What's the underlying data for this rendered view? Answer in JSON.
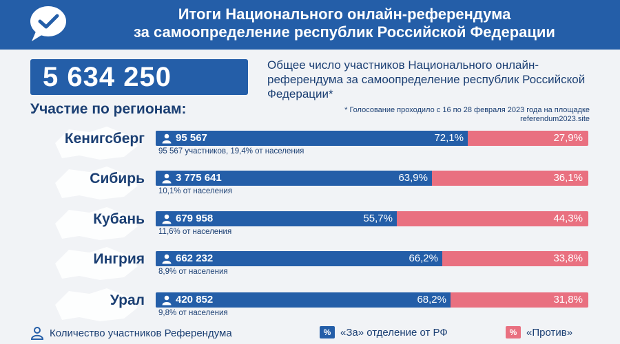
{
  "header": {
    "title_line1": "Итоги Национального онлайн-референдума",
    "title_line2": "за самоопределение республик Российской Федерации"
  },
  "total": {
    "value": "5 634 250",
    "description": "Общее число участников Национального онлайн-референдума за самоопределение республик Российской Федерации*"
  },
  "section_title": "Участие по регионам:",
  "footnote": "* Голосование проходило с 16 по 28 февраля 2023 года на площадке referendum2023.site",
  "regions": [
    {
      "name": "Кенигсберг",
      "count": "95 567",
      "for_pct": "72,1%",
      "against_pct": "27,9%",
      "for_fraction": 0.721,
      "sub": "95 567 участников, 19,4% от населения"
    },
    {
      "name": "Сибирь",
      "count": "3 775 641",
      "for_pct": "63,9%",
      "against_pct": "36,1%",
      "for_fraction": 0.639,
      "sub": "10,1% от населения"
    },
    {
      "name": "Кубань",
      "count": "679 958",
      "for_pct": "55,7%",
      "against_pct": "44,3%",
      "for_fraction": 0.557,
      "sub": "11,6% от населения"
    },
    {
      "name": "Ингрия",
      "count": "662 232",
      "for_pct": "66,2%",
      "against_pct": "33,8%",
      "for_fraction": 0.662,
      "sub": "8,9% от населения"
    },
    {
      "name": "Урал",
      "count": "420 852",
      "for_pct": "68,2%",
      "against_pct": "31,8%",
      "for_fraction": 0.682,
      "sub": "9,8% от населения"
    }
  ],
  "legend": {
    "participants": "Количество участников Референдума",
    "swatch_symbol": "%",
    "for_label": "«За» отделение от РФ",
    "against_label": "«Против»"
  },
  "colors": {
    "brand_blue": "#245ea8",
    "against_pink": "#e97080",
    "text_navy": "#1b3f73",
    "background": "#f1f3f6"
  },
  "icons": [
    "check-bubble-icon",
    "person-icon",
    "region-map-icon"
  ]
}
